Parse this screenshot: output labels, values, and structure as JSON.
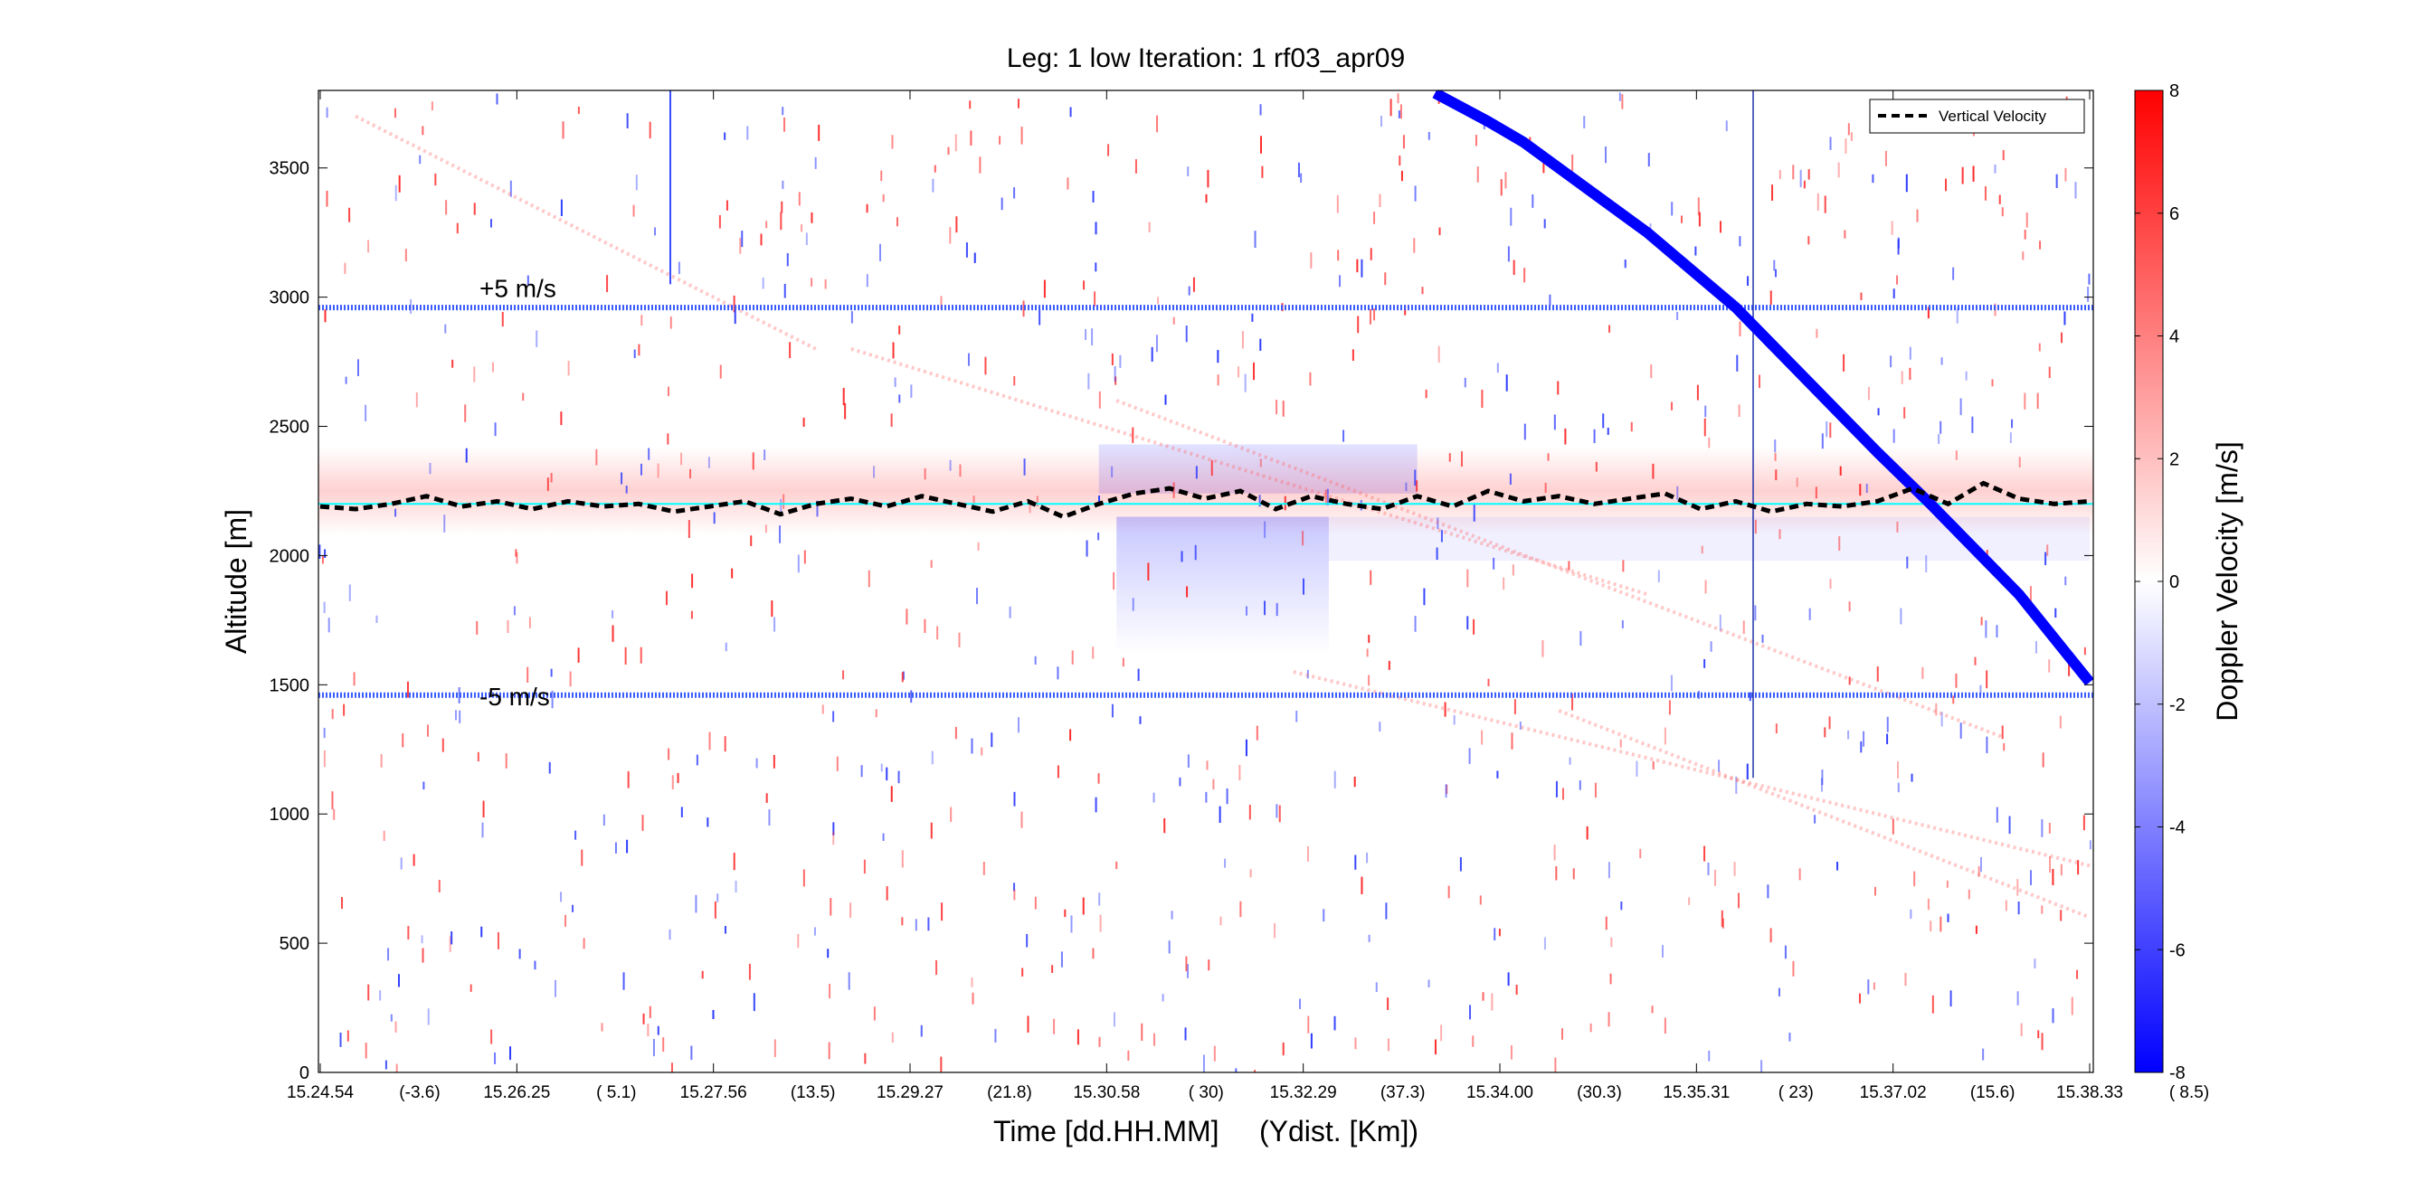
{
  "chart_data": {
    "type": "heatmap",
    "title": "Leg: 1 low Iteration: 1  rf03_apr09",
    "xlabel": "Time [dd.HH.MM]     (Ydist. [Km])",
    "ylabel": "Altitude [m]",
    "colorbar_label": "Doppler Velocity [m/s]",
    "colormap": "blue-white-red",
    "colors": {
      "negative": "#0000ff",
      "zero": "#ffffff",
      "positive": "#ff0000",
      "vertical_velocity": "#000000",
      "reference_line": "#00ffff",
      "bounds_lines": "#3b5cff"
    },
    "xlim": [
      0,
      1
    ],
    "ylim": [
      0,
      3800
    ],
    "clim": [
      -8,
      8
    ],
    "yticks": [
      0,
      500,
      1000,
      1500,
      2000,
      2500,
      3000,
      3500
    ],
    "colorbar_ticks": [
      -8,
      -6,
      -4,
      -2,
      0,
      2,
      4,
      6,
      8
    ],
    "xtick_labels": [
      {
        "time": "15.24.54",
        "dist": "(-3.6)"
      },
      {
        "time": "15.26.25",
        "dist": "(  5.1)"
      },
      {
        "time": "15.27.56",
        "dist": "(13.5)"
      },
      {
        "time": "15.29.27",
        "dist": "(21.8)"
      },
      {
        "time": "15.30.58",
        "dist": "(  30)"
      },
      {
        "time": "15.32.29",
        "dist": "(37.3)"
      },
      {
        "time": "15.34.00",
        "dist": "(30.3)"
      },
      {
        "time": "15.35.31",
        "dist": "(  23)"
      },
      {
        "time": "15.37.02",
        "dist": "(15.6)"
      },
      {
        "time": "15.38.33",
        "dist": "(  8.5)"
      }
    ],
    "grid": false,
    "legend": {
      "position": "top-right",
      "entries": [
        "Vertical Velocity"
      ]
    },
    "annotations": [
      {
        "text": "+5 m/s",
        "x": 0.09,
        "y": 3000
      },
      {
        "text": "-5 m/s",
        "x": 0.09,
        "y": 1420
      }
    ],
    "reference_line_altitude": 2200,
    "plus5_line_altitude": 2960,
    "minus5_line_altitude": 1460,
    "series": [
      {
        "name": "Vertical Velocity",
        "style": "dashed",
        "x": [
          0,
          0.02,
          0.04,
          0.06,
          0.08,
          0.1,
          0.12,
          0.14,
          0.16,
          0.18,
          0.2,
          0.22,
          0.24,
          0.26,
          0.28,
          0.3,
          0.32,
          0.34,
          0.36,
          0.38,
          0.4,
          0.42,
          0.44,
          0.46,
          0.48,
          0.5,
          0.52,
          0.54,
          0.56,
          0.58,
          0.6,
          0.62,
          0.64,
          0.66,
          0.68,
          0.7,
          0.72,
          0.74,
          0.76,
          0.78,
          0.8,
          0.82,
          0.84,
          0.86,
          0.88,
          0.9,
          0.92,
          0.94,
          0.96,
          0.98,
          1.0
        ],
        "y": [
          2190,
          2180,
          2200,
          2230,
          2190,
          2210,
          2180,
          2210,
          2190,
          2200,
          2170,
          2190,
          2210,
          2160,
          2200,
          2220,
          2190,
          2230,
          2200,
          2170,
          2210,
          2150,
          2200,
          2240,
          2260,
          2220,
          2250,
          2180,
          2230,
          2200,
          2180,
          2230,
          2190,
          2250,
          2210,
          2230,
          2200,
          2220,
          2240,
          2180,
          2210,
          2170,
          2200,
          2190,
          2210,
          2260,
          2200,
          2280,
          2220,
          2200,
          2210
        ]
      }
    ],
    "features": [
      {
        "name": "descending-blue-streak",
        "velocity": -8,
        "points": [
          [
            0.63,
            3790
          ],
          [
            0.66,
            3680
          ],
          [
            0.68,
            3600
          ],
          [
            0.75,
            3250
          ],
          [
            0.8,
            2960
          ],
          [
            0.84,
            2680
          ],
          [
            0.88,
            2400
          ],
          [
            0.91,
            2200
          ],
          [
            0.93,
            2060
          ],
          [
            0.96,
            1850
          ],
          [
            1.0,
            1510
          ]
        ]
      }
    ]
  }
}
